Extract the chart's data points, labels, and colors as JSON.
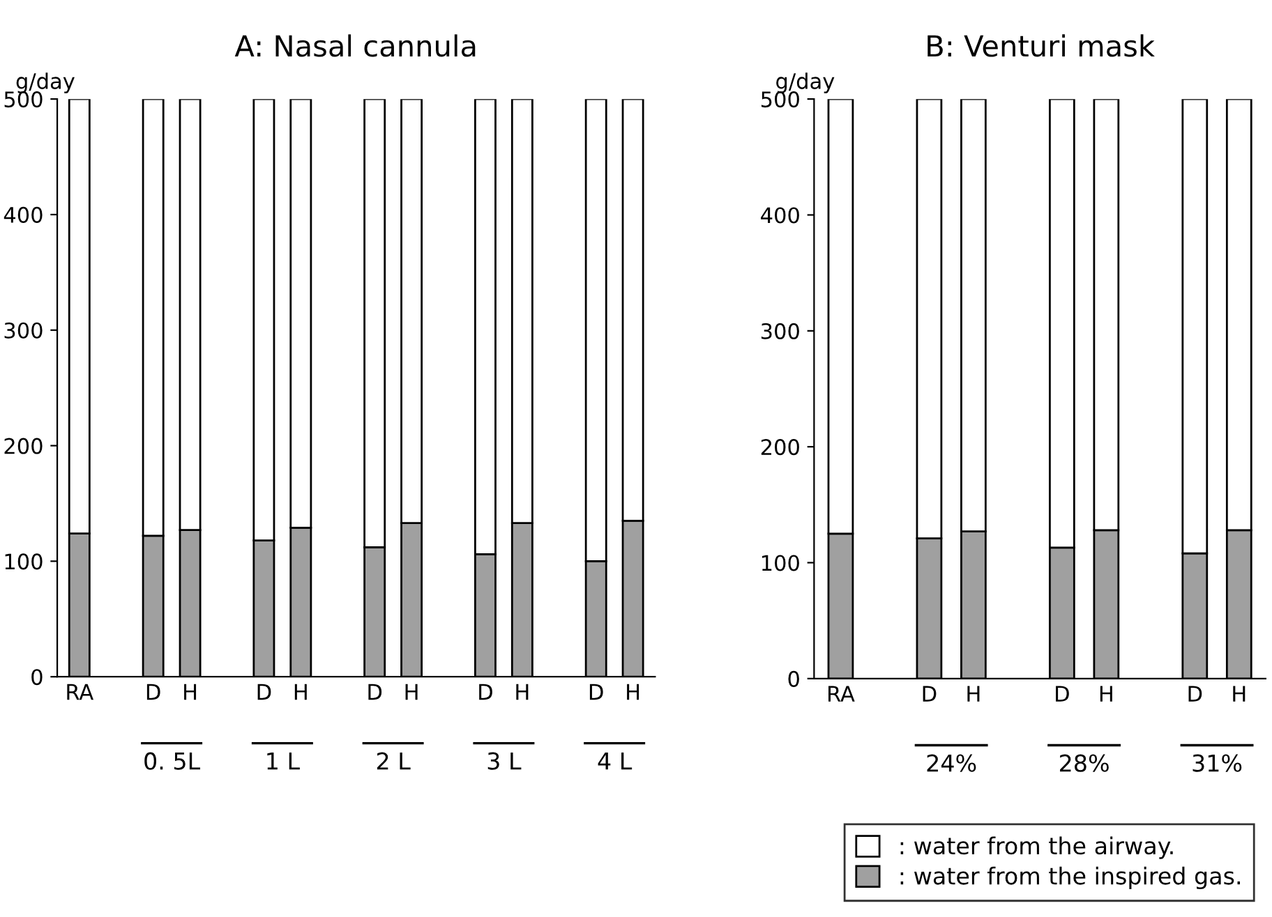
{
  "chart_data": [
    {
      "type": "bar",
      "title": "A: Nasal cannula",
      "ylabel": "g/day",
      "stacked": true,
      "categories": [
        "RA",
        null,
        "D",
        "H",
        null,
        "D",
        "H",
        null,
        "D",
        "H",
        null,
        "D",
        "H",
        null,
        "D",
        "H"
      ],
      "series": [
        {
          "color": "#a0a0a0",
          "values": [
            124,
            null,
            122,
            127,
            null,
            118,
            129,
            null,
            112,
            133,
            null,
            106,
            133,
            null,
            100,
            135
          ]
        },
        {
          "color": "#ffffff",
          "values": [
            376,
            null,
            378,
            373,
            null,
            382,
            371,
            null,
            388,
            367,
            null,
            394,
            367,
            null,
            400,
            365
          ]
        }
      ],
      "annotations": [
        "0. 5L",
        "1 L",
        "2 L",
        "3 L",
        "4 L"
      ],
      "ylim": [
        0,
        500
      ],
      "yticks": [
        0,
        100,
        200,
        300,
        400,
        500
      ],
      "grid": false,
      "legend": false
    },
    {
      "type": "bar",
      "title": "B: Venturi mask",
      "ylabel": "g/day",
      "stacked": true,
      "categories": [
        "RA",
        null,
        "D",
        "H",
        null,
        "D",
        "H",
        null,
        "D",
        "H"
      ],
      "series": [
        {
          "name": ": water from the inspired gas.",
          "color": "#a0a0a0",
          "values": [
            125,
            null,
            121,
            127,
            null,
            113,
            128,
            null,
            108,
            128
          ]
        },
        {
          "name": ": water from the airway.",
          "color": "#ffffff",
          "values": [
            375,
            null,
            379,
            373,
            null,
            387,
            372,
            null,
            392,
            372
          ]
        }
      ],
      "annotations": [
        "24%",
        "28%",
        "31%"
      ],
      "ylim": [
        0,
        500
      ],
      "yticks": [
        0,
        100,
        200,
        300,
        400,
        500
      ],
      "grid": false,
      "legend": "bottom right"
    }
  ]
}
